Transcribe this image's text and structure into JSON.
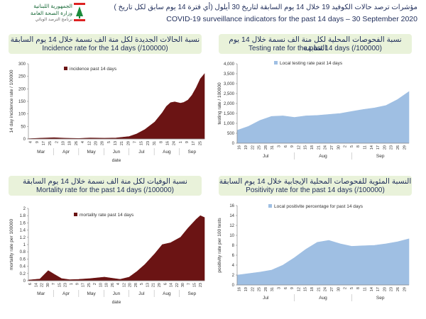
{
  "header": {
    "logo_lines": [
      "الجمهورية اللبنانية",
      "وزارة الصحة العامة",
      "برنامج الترصد الوبائي"
    ],
    "title_ar": "مؤشرات ترصد حالات الكوفيد 19 خلال 14 يوم السابقة لتاريخ 30 أيلول (أي فترة 14 يوم سابق لكل تاريخ )",
    "title_en": "COVID-19 surveillance indicators for the past 14 days – 30 September 2020"
  },
  "colors": {
    "maroon": "#6b1414",
    "blue": "#9fbfe3",
    "title_bg": "#e9f2da",
    "text": "#1f2d5a"
  },
  "panels": [
    {
      "title_ar": "نسبة الحالات الجديدة لكل منة الف نسمة خلال 14 يوم السابقة",
      "title_en": "Incidence rate for the 14 days  (/100000)"
    },
    {
      "title_ar": "نسبة الفحوصات المحلية لكل منة الف نسمة خلال 14 يوم السابقة",
      "title_en": "Testing rate for the past 14 days (/100000)"
    },
    {
      "title_ar": "نسبة الوفيات لكل منة الف نسمة خلال 14 يوم السابقة",
      "title_en": "Mortality rate for the past 14 days (/100000)"
    },
    {
      "title_ar": "النسبة المئوية للفحوصات المحلية الإيجابية خلال 14 يوم السابقة",
      "title_en": "Positivity rate for the past 14 days (/100000)"
    }
  ],
  "chart_data": [
    {
      "type": "area",
      "title": "Incidence rate for the 14 days  (/100000)",
      "ylabel": "14 day incidence rate / 100000",
      "xlabel": "date",
      "ylim": [
        0,
        300
      ],
      "yticks": [
        "0",
        "50",
        "100",
        "150",
        "200",
        "250",
        "300"
      ],
      "series": [
        {
          "name": "incidence past 14 days",
          "color": "#6b1414"
        }
      ],
      "x": [
        "Mar 1",
        "Mar 15",
        "Apr 1",
        "Apr 15",
        "May 1",
        "May 15",
        "Jun 1",
        "Jun 15",
        "Jul 1",
        "Jul 10",
        "Jul 20",
        "Aug 1",
        "Aug 10",
        "Aug 15",
        "Aug 20",
        "Aug 25",
        "Sep 1",
        "Sep 5",
        "Sep 10",
        "Sep 15",
        "Sep 20",
        "Sep 25",
        "Sep 30"
      ],
      "values": [
        1,
        3,
        5,
        3,
        2,
        4,
        3,
        4,
        10,
        20,
        38,
        68,
        105,
        130,
        145,
        148,
        143,
        146,
        155,
        175,
        205,
        240,
        260
      ],
      "tick_labels": [
        "4",
        "9",
        "17",
        "25",
        "2",
        "10",
        "18",
        "26",
        "4",
        "12",
        "20",
        "28",
        "5",
        "13",
        "21",
        "29",
        "7",
        "15",
        "23",
        "31",
        "8",
        "16",
        "24",
        "1",
        "9",
        "17",
        "25"
      ],
      "months": [
        "Mar",
        "Apr",
        "May",
        "Jun",
        "Jul",
        "Aug",
        "Sep"
      ]
    },
    {
      "type": "area",
      "title": "Testing rate for the past 14 days (/100000)",
      "ylabel": "testing rate / 100000",
      "xlabel": "",
      "ylim": [
        0,
        4000
      ],
      "yticks": [
        "0",
        "500",
        "1,000",
        "1,500",
        "2,000",
        "2,500",
        "3,000",
        "3,500",
        "4,000"
      ],
      "series": [
        {
          "name": "Local testing rate past 14 days",
          "color": "#9fbfe3"
        }
      ],
      "x": [
        "Jul 16",
        "Jul 21",
        "Jul 26",
        "Jul 31",
        "Aug 5",
        "Aug 10",
        "Aug 15",
        "Aug 20",
        "Aug 25",
        "Aug 30",
        "Sep 4",
        "Sep 9",
        "Sep 14",
        "Sep 19",
        "Sep 24",
        "Sep 29"
      ],
      "values": [
        650,
        850,
        1150,
        1350,
        1380,
        1300,
        1380,
        1400,
        1450,
        1500,
        1600,
        1700,
        1780,
        1900,
        2200,
        2600
      ],
      "tick_labels": [
        "16",
        "19",
        "22",
        "25",
        "28",
        "31",
        "3",
        "6",
        "9",
        "12",
        "15",
        "18",
        "21",
        "24",
        "27",
        "30",
        "2",
        "5",
        "8",
        "11",
        "14",
        "17",
        "20",
        "23",
        "26",
        "29"
      ],
      "months": [
        "Jul",
        "Aug",
        "Sep"
      ]
    },
    {
      "type": "area",
      "title": "Mortality rate for the past 14 days (/100000)",
      "ylabel": "mortality rate per 100000",
      "xlabel": "date",
      "ylim": [
        0,
        2
      ],
      "yticks": [
        "0",
        "0.2",
        "0.4",
        "0.6",
        "0.8",
        "1",
        "1.2",
        "1.4",
        "1.6",
        "1.8",
        "2"
      ],
      "series": [
        {
          "name": "mortality rate past 14 days",
          "color": "#6b1414"
        }
      ],
      "x": [
        "Mar 1",
        "Mar 15",
        "Mar 25",
        "Apr 1",
        "Apr 10",
        "Apr 20",
        "May 1",
        "May 15",
        "Jun 1",
        "Jun 10",
        "Jun 20",
        "Jul 1",
        "Jul 10",
        "Jul 20",
        "Aug 1",
        "Aug 10",
        "Aug 20",
        "Sep 1",
        "Sep 10",
        "Sep 20",
        "Sep 25",
        "Sep 30"
      ],
      "values": [
        0.02,
        0.05,
        0.28,
        0.18,
        0.06,
        0.03,
        0.04,
        0.06,
        0.1,
        0.07,
        0.04,
        0.1,
        0.25,
        0.45,
        0.75,
        1.0,
        1.05,
        1.2,
        1.45,
        1.7,
        1.8,
        1.75
      ],
      "tick_labels": [
        "6",
        "14",
        "22",
        "30",
        "7",
        "15",
        "23",
        "1",
        "9",
        "17",
        "25",
        "2",
        "10",
        "18",
        "26",
        "4",
        "12",
        "20",
        "28",
        "5",
        "13",
        "21",
        "29",
        "6",
        "14",
        "22",
        "30",
        "7",
        "15",
        "23"
      ],
      "months": [
        "Mar",
        "Apr",
        "May",
        "Jun",
        "Jul",
        "Aug",
        "Sep"
      ]
    },
    {
      "type": "area",
      "title": "Positivity rate for the past 14 days (/100000)",
      "ylabel": "positivity rate per 100 tests",
      "xlabel": "",
      "ylim": [
        0,
        16
      ],
      "yticks": [
        "0",
        "2",
        "4",
        "6",
        "8",
        "10",
        "12",
        "14",
        "16"
      ],
      "series": [
        {
          "name": "Local positivite percentage for past 14 days",
          "color": "#9fbfe3"
        }
      ],
      "x": [
        "Jul 16",
        "Jul 21",
        "Jul 26",
        "Jul 31",
        "Aug 5",
        "Aug 10",
        "Aug 15",
        "Aug 20",
        "Aug 25",
        "Aug 30",
        "Sep 4",
        "Sep 9",
        "Sep 14",
        "Sep 19",
        "Sep 24",
        "Sep 29"
      ],
      "values": [
        2.0,
        2.3,
        2.6,
        3.0,
        4.0,
        5.5,
        7.2,
        8.6,
        9.0,
        8.3,
        7.8,
        7.9,
        8.0,
        8.3,
        8.7,
        9.3
      ],
      "tick_labels": [
        "16",
        "19",
        "22",
        "25",
        "28",
        "31",
        "3",
        "6",
        "9",
        "12",
        "15",
        "18",
        "21",
        "24",
        "27",
        "30",
        "2",
        "5",
        "8",
        "11",
        "14",
        "17",
        "20",
        "23",
        "26",
        "29"
      ],
      "months": [
        "Jul",
        "Aug",
        "Sep"
      ]
    }
  ]
}
